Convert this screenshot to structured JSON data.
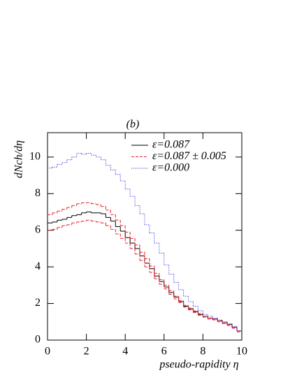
{
  "chart_data": {
    "type": "histogram",
    "title": "(b)",
    "ylabel": "dNch/dη",
    "xlabel": "pseudo-rapidity η",
    "bins": [
      0,
      0.25,
      0.5,
      0.75,
      1,
      1.25,
      1.5,
      1.75,
      2,
      2.25,
      2.5,
      2.75,
      3,
      3.25,
      3.5,
      3.75,
      4,
      4.25,
      4.5,
      4.75,
      5,
      5.25,
      5.5,
      5.75,
      6,
      6.25,
      6.5,
      6.75,
      7,
      7.25,
      7.5,
      7.75,
      8,
      8.25,
      8.5,
      8.75,
      9,
      9.25,
      9.5,
      9.75,
      10
    ],
    "xlim": [
      0,
      10
    ],
    "xticks": [
      0,
      2,
      4,
      6,
      8,
      10
    ],
    "ylim": [
      0,
      11.33
    ],
    "yticks": [
      0,
      2,
      4,
      6,
      8,
      10
    ],
    "legend": "upper right",
    "series": [
      {
        "name": "ε=0.087",
        "color": "#000000",
        "linestyle": "solid",
        "values": [
          6.4,
          6.45,
          6.55,
          6.6,
          6.7,
          6.8,
          6.85,
          6.95,
          7.0,
          6.95,
          6.95,
          6.9,
          6.7,
          6.5,
          6.2,
          5.95,
          5.6,
          5.3,
          5.0,
          4.6,
          4.2,
          3.9,
          3.5,
          3.2,
          2.9,
          2.6,
          2.35,
          2.1,
          1.85,
          1.7,
          1.55,
          1.4,
          1.3,
          1.2,
          1.15,
          1.05,
          0.95,
          0.85,
          0.7,
          0.5
        ]
      },
      {
        "name": "ε=0.087 ± 0.005",
        "color": "#e8202a",
        "linestyle": "dashed",
        "values": [
          6.85,
          6.95,
          7.05,
          7.15,
          7.25,
          7.35,
          7.45,
          7.5,
          7.5,
          7.45,
          7.4,
          7.3,
          7.1,
          6.85,
          6.55,
          6.25,
          5.9,
          5.55,
          5.2,
          4.8,
          4.45,
          4.05,
          3.65,
          3.3,
          3.0,
          2.7,
          2.4,
          2.15,
          1.9,
          1.75,
          1.6,
          1.45,
          1.3,
          1.2,
          1.15,
          1.05,
          0.95,
          0.85,
          0.7,
          0.5
        ]
      },
      {
        "color": "#e8202a",
        "linestyle": "dashed",
        "values": [
          6.0,
          6.05,
          6.15,
          6.25,
          6.3,
          6.4,
          6.45,
          6.5,
          6.55,
          6.5,
          6.45,
          6.4,
          6.25,
          6.05,
          5.8,
          5.55,
          5.3,
          5.0,
          4.7,
          4.35,
          4.0,
          3.7,
          3.35,
          3.05,
          2.8,
          2.5,
          2.25,
          2.05,
          1.8,
          1.65,
          1.5,
          1.35,
          1.25,
          1.15,
          1.1,
          1.0,
          0.9,
          0.8,
          0.65,
          0.45
        ]
      },
      {
        "name": "ε=0.000",
        "color": "#2a2ae8",
        "linestyle": "dotted",
        "values": [
          9.4,
          9.45,
          9.6,
          9.7,
          9.85,
          10.0,
          10.2,
          10.15,
          10.2,
          10.1,
          10.0,
          9.85,
          9.55,
          9.3,
          9.05,
          8.7,
          8.25,
          7.85,
          7.35,
          6.9,
          6.3,
          5.85,
          5.3,
          4.75,
          4.1,
          3.6,
          3.15,
          2.75,
          2.4,
          2.1,
          1.85,
          1.6,
          1.4,
          1.3,
          1.2,
          1.1,
          1.0,
          0.9,
          0.75,
          0.5
        ]
      }
    ]
  }
}
